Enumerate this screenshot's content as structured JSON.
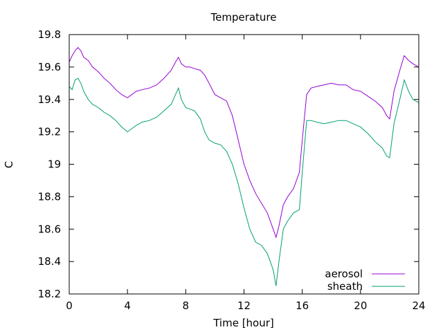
{
  "chart_data": {
    "type": "line",
    "title": "Temperature",
    "xlabel": "Time [hour]",
    "ylabel": "C",
    "xlim": [
      0,
      24
    ],
    "ylim": [
      18.2,
      19.8
    ],
    "xticks": [
      0,
      4,
      8,
      12,
      16,
      20,
      24
    ],
    "xtick_labels": [
      "0",
      "4",
      "8",
      "12",
      "16",
      "20",
      "24"
    ],
    "yticks": [
      18.2,
      18.4,
      18.6,
      18.8,
      19.0,
      19.2,
      19.4,
      19.6,
      19.8
    ],
    "ytick_labels": [
      "18.2",
      "18.4",
      "18.6",
      "18.8",
      "19",
      "19.2",
      "19.4",
      "19.6",
      "19.8"
    ],
    "grid": false,
    "legend_position": "bottom-right",
    "series": [
      {
        "name": "aerosol",
        "color": "#9400d3",
        "x": [
          0,
          0.2,
          0.4,
          0.6,
          0.8,
          1.0,
          1.3,
          1.6,
          2.0,
          2.4,
          2.8,
          3.2,
          3.6,
          4.0,
          4.3,
          4.6,
          5.0,
          5.5,
          6.0,
          6.5,
          7.0,
          7.3,
          7.5,
          7.7,
          8.0,
          8.3,
          8.6,
          9.0,
          9.3,
          9.6,
          10.0,
          10.4,
          10.8,
          11.2,
          11.6,
          12.0,
          12.4,
          12.8,
          13.2,
          13.6,
          14.0,
          14.2,
          14.4,
          14.7,
          15.0,
          15.4,
          15.8,
          16.0,
          16.3,
          16.6,
          17.0,
          17.5,
          18.0,
          18.5,
          19.0,
          19.5,
          20.0,
          20.5,
          21.0,
          21.5,
          21.8,
          22.0,
          22.3,
          22.7,
          23.0,
          23.3,
          23.6,
          24.0
        ],
        "y": [
          19.63,
          19.67,
          19.7,
          19.72,
          19.7,
          19.66,
          19.64,
          19.6,
          19.57,
          19.53,
          19.5,
          19.46,
          19.43,
          19.41,
          19.43,
          19.45,
          19.46,
          19.47,
          19.49,
          19.53,
          19.58,
          19.63,
          19.66,
          19.62,
          19.6,
          19.6,
          19.59,
          19.58,
          19.55,
          19.5,
          19.43,
          19.41,
          19.39,
          19.3,
          19.15,
          19.0,
          18.9,
          18.82,
          18.76,
          18.7,
          18.6,
          18.55,
          18.62,
          18.75,
          18.8,
          18.85,
          18.95,
          19.15,
          19.43,
          19.47,
          19.48,
          19.49,
          19.5,
          19.49,
          19.49,
          19.46,
          19.45,
          19.42,
          19.39,
          19.35,
          19.3,
          19.28,
          19.45,
          19.58,
          19.67,
          19.64,
          19.62,
          19.6
        ]
      },
      {
        "name": "sheath",
        "color": "#009e73",
        "x": [
          0,
          0.2,
          0.4,
          0.6,
          0.8,
          1.0,
          1.3,
          1.6,
          2.0,
          2.4,
          2.8,
          3.2,
          3.6,
          4.0,
          4.3,
          4.6,
          5.0,
          5.5,
          6.0,
          6.5,
          7.0,
          7.3,
          7.5,
          7.7,
          8.0,
          8.3,
          8.6,
          9.0,
          9.3,
          9.6,
          10.0,
          10.4,
          10.8,
          11.2,
          11.6,
          12.0,
          12.4,
          12.8,
          13.2,
          13.6,
          14.0,
          14.2,
          14.4,
          14.7,
          15.0,
          15.4,
          15.8,
          16.0,
          16.3,
          16.6,
          17.0,
          17.5,
          18.0,
          18.5,
          19.0,
          19.5,
          20.0,
          20.5,
          21.0,
          21.5,
          21.8,
          22.0,
          22.3,
          22.7,
          23.0,
          23.3,
          23.6,
          24.0
        ],
        "y": [
          19.48,
          19.46,
          19.52,
          19.53,
          19.5,
          19.45,
          19.4,
          19.37,
          19.35,
          19.32,
          19.3,
          19.27,
          19.23,
          19.2,
          19.22,
          19.24,
          19.26,
          19.27,
          19.29,
          19.33,
          19.37,
          19.43,
          19.47,
          19.4,
          19.35,
          19.34,
          19.33,
          19.28,
          19.2,
          19.15,
          19.13,
          19.12,
          19.08,
          19.0,
          18.88,
          18.73,
          18.6,
          18.52,
          18.5,
          18.45,
          18.35,
          18.25,
          18.4,
          18.6,
          18.65,
          18.7,
          18.72,
          18.95,
          19.27,
          19.27,
          19.26,
          19.25,
          19.26,
          19.27,
          19.27,
          19.25,
          19.23,
          19.19,
          19.14,
          19.1,
          19.05,
          19.04,
          19.25,
          19.4,
          19.52,
          19.45,
          19.4,
          19.38
        ]
      }
    ]
  }
}
